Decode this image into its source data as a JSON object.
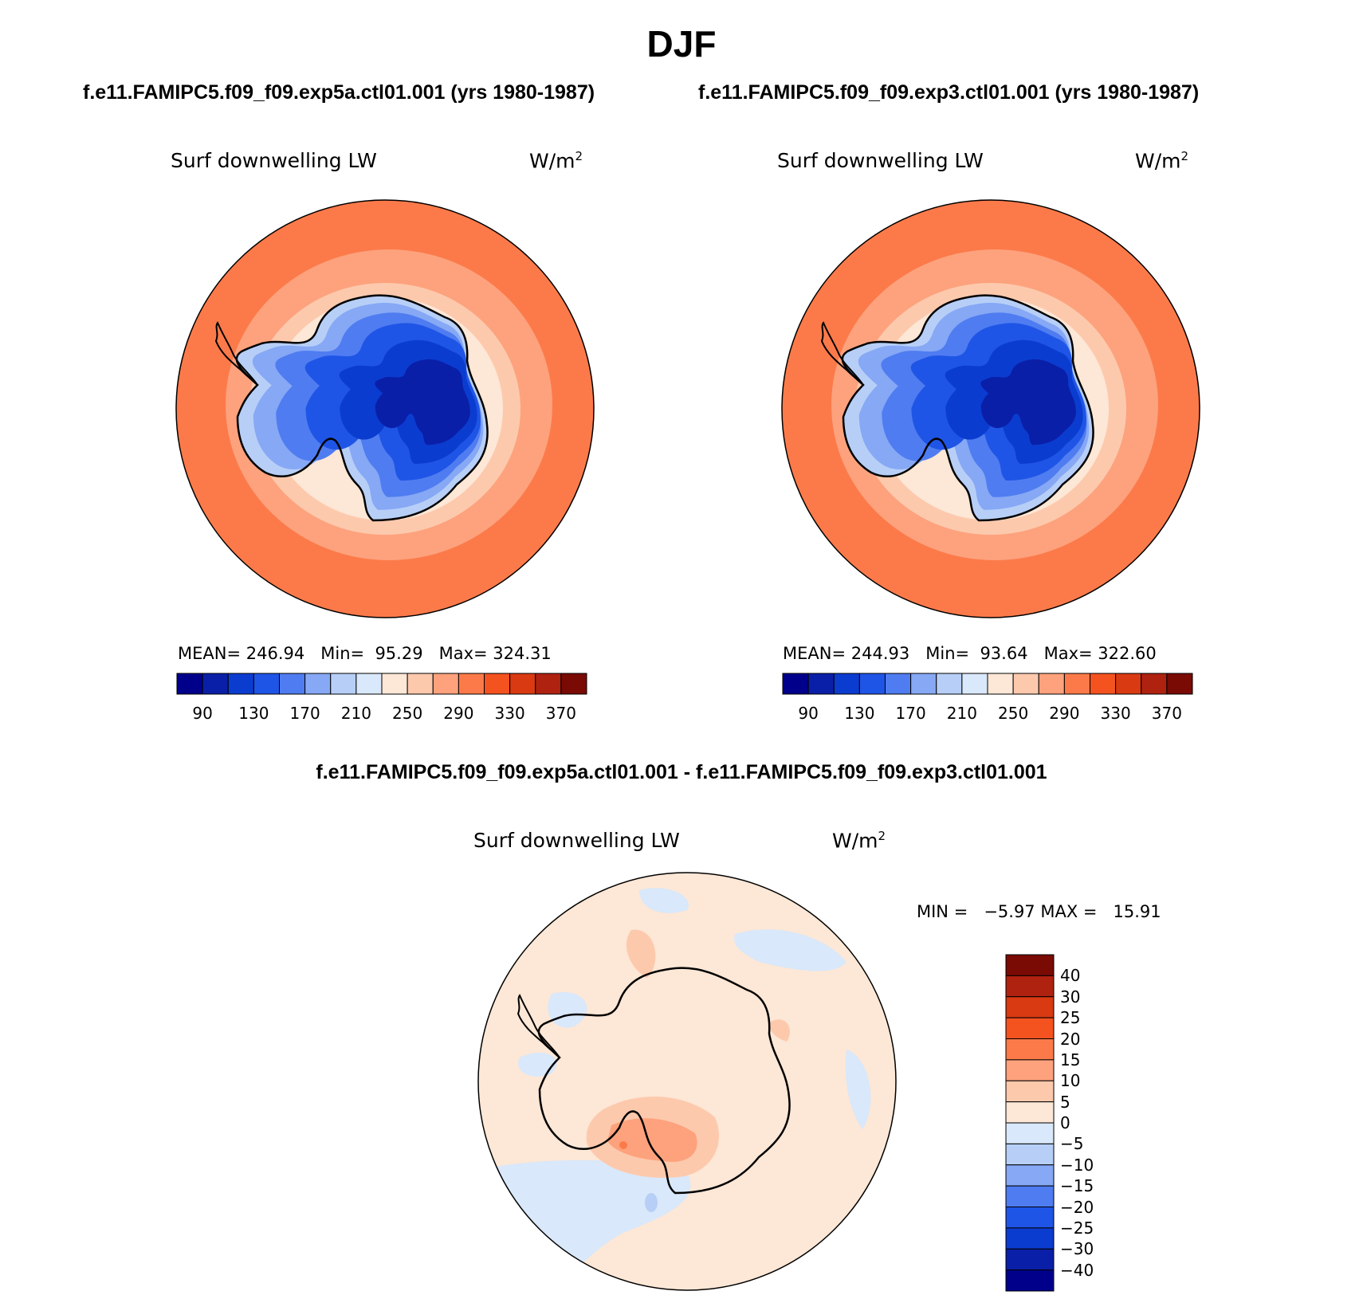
{
  "title": "DJF",
  "subtitle_left": "f.e11.FAMIPC5.f09_f09.exp5a.ctl01.001 (yrs 1980-1987)",
  "subtitle_right": "f.e11.FAMIPC5.f09_f09.exp3.ctl01.001 (yrs 1980-1987)",
  "diff_title": "f.e11.FAMIPC5.f09_f09.exp5a.ctl01.001 - f.e11.FAMIPC5.f09_f09.exp3.ctl01.001",
  "panels": [
    {
      "variable": "Surf downwelling LW",
      "units_base": "W/m",
      "units_exp": "2",
      "stats": "MEAN= 246.94   Min=  95.29   Max= 324.31",
      "mean": 246.94,
      "min": 95.29,
      "max": 324.31
    },
    {
      "variable": "Surf downwelling LW",
      "units_base": "W/m",
      "units_exp": "2",
      "stats": "MEAN= 244.93   Min=  93.64   Max= 322.60",
      "mean": 244.93,
      "min": 93.64,
      "max": 322.6
    },
    {
      "variable": "Surf downwelling LW",
      "units_base": "W/m",
      "units_exp": "2",
      "stats": "MIN =   −5.97 MAX =   15.91",
      "min": -5.97,
      "max": 15.91
    }
  ],
  "colorbar_horizontal": {
    "colors": [
      "#00008b",
      "#0a1fa8",
      "#0b3cd0",
      "#1f55e6",
      "#4f7cf0",
      "#86a8f5",
      "#b7cff7",
      "#d9e8fa",
      "#fde7d6",
      "#fdc9ad",
      "#fda27d",
      "#fc7a4a",
      "#f4521f",
      "#d93a12",
      "#b02210",
      "#7a0a04"
    ],
    "labels": [
      "90",
      "130",
      "170",
      "210",
      "250",
      "290",
      "330",
      "370"
    ]
  },
  "colorbar_vertical": {
    "colors_top_to_bottom": [
      "#7a0a04",
      "#b02210",
      "#d93a12",
      "#f4521f",
      "#fc7a4a",
      "#fda27d",
      "#fdc9ad",
      "#fde7d6",
      "#d9e8fa",
      "#b7cff7",
      "#86a8f5",
      "#4f7cf0",
      "#1f55e6",
      "#0b3cd0",
      "#0a1fa8",
      "#00008b"
    ],
    "labels": [
      "40",
      "30",
      "25",
      "20",
      "15",
      "10",
      "5",
      "0",
      "−5",
      "−10",
      "−15",
      "−20",
      "−25",
      "−30",
      "−40"
    ]
  }
}
